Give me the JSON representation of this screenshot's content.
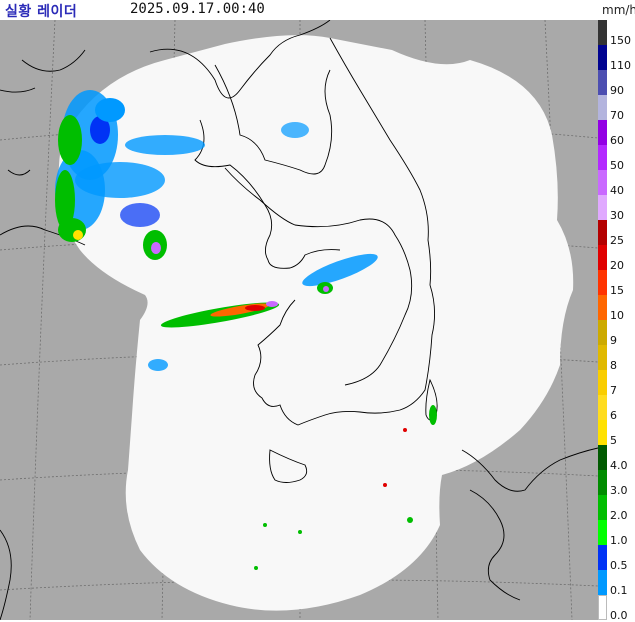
{
  "header": {
    "title": "실황 레이더",
    "timestamp": "2025.09.17.00:40",
    "unit": "mm/h"
  },
  "legend": [
    {
      "label": "150",
      "color": "#333333"
    },
    {
      "label": "110",
      "color": "#000390"
    },
    {
      "label": "90",
      "color": "#4c4eb1"
    },
    {
      "label": "70",
      "color": "#b3b4de"
    },
    {
      "label": "60",
      "color": "#9300e4"
    },
    {
      "label": "50",
      "color": "#b329ff"
    },
    {
      "label": "40",
      "color": "#c969ff"
    },
    {
      "label": "30",
      "color": "#e0a9ff"
    },
    {
      "label": "25",
      "color": "#b40000"
    },
    {
      "label": "20",
      "color": "#e00000"
    },
    {
      "label": "15",
      "color": "#ff3300"
    },
    {
      "label": "10",
      "color": "#ff6600"
    },
    {
      "label": "9",
      "color": "#ccaa00"
    },
    {
      "label": "8",
      "color": "#e0b900"
    },
    {
      "label": "7",
      "color": "#f9cd00"
    },
    {
      "label": "6",
      "color": "#ffdc1f"
    },
    {
      "label": "5",
      "color": "#ffe100"
    },
    {
      "label": "4.0",
      "color": "#005a00"
    },
    {
      "label": "3.0",
      "color": "#008c00"
    },
    {
      "label": "2.0",
      "color": "#00be00"
    },
    {
      "label": "1.0",
      "color": "#00ff00"
    },
    {
      "label": "0.5",
      "color": "#0033f5"
    },
    {
      "label": "0.1",
      "color": "#0099ff"
    },
    {
      "label": "0.0",
      "color": "#ffffff"
    }
  ],
  "map": {
    "colors": {
      "outside": "#a9a9a9",
      "coverage": "#f8f8f8",
      "coast": "#000000",
      "grid": "#6e6e6e",
      "rain_light": "#0099ff",
      "rain_blue": "#0033f5",
      "rain_green": "#00be00",
      "rain_yellow": "#ffe100",
      "rain_red": "#e00000",
      "rain_purple": "#c969ff"
    }
  }
}
